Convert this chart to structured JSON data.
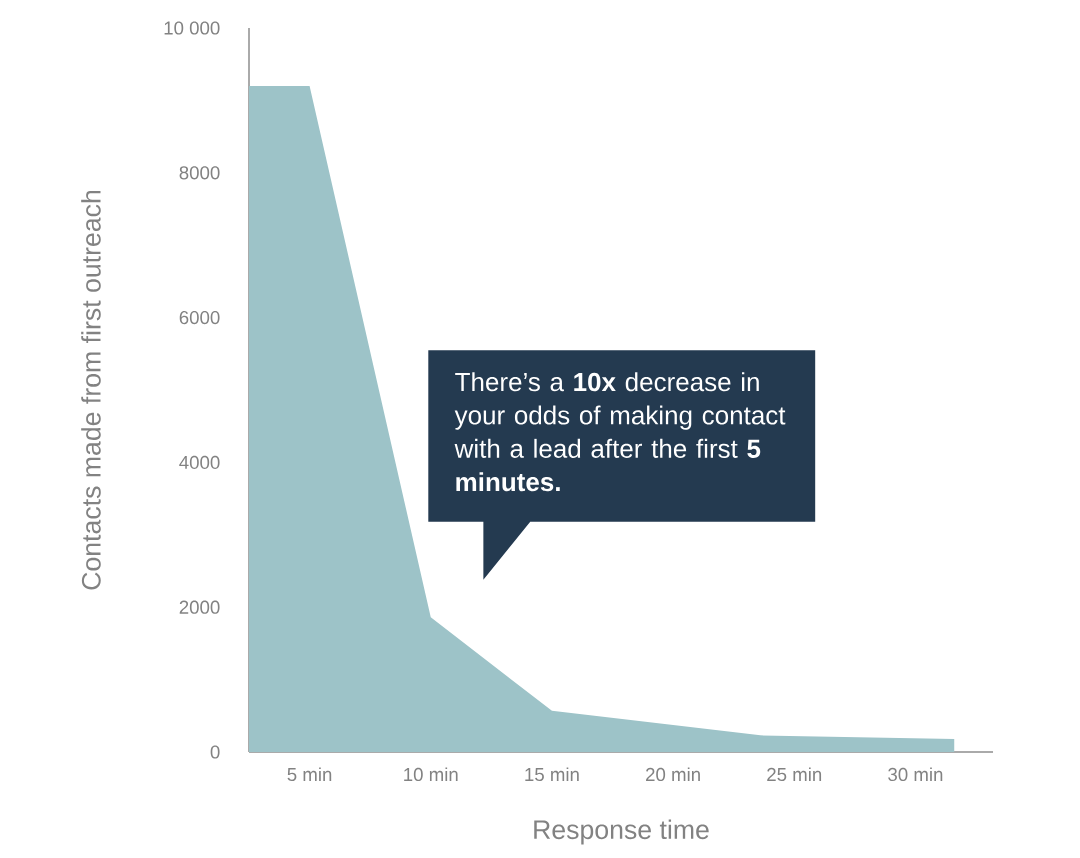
{
  "chart_data": {
    "type": "area",
    "xlabel": "Response time",
    "ylabel": "Contacts made from first outreach",
    "x": [
      2.5,
      5,
      10,
      15,
      23.6,
      31.6
    ],
    "series": [
      {
        "color": "#9dc3c8",
        "values": [
          9200,
          9200,
          1860,
          570,
          230,
          180
        ]
      }
    ],
    "xlim": [
      2.5,
      33.2
    ],
    "xticks": [
      {
        "value": 5,
        "label": "5 min"
      },
      {
        "value": 10,
        "label": "10 min"
      },
      {
        "value": 15,
        "label": "15 min"
      },
      {
        "value": 20,
        "label": "20 min"
      },
      {
        "value": 25,
        "label": "25 min"
      },
      {
        "value": 30,
        "label": "30 min"
      }
    ],
    "ylim": [
      0,
      10000
    ],
    "yticks": [
      0,
      2000,
      4000,
      6000,
      8000,
      {
        "value": 10000,
        "label": "10 000"
      }
    ],
    "annotations": [
      "There’s a **10x** decrease in your odds of making contact with a lead after the first **5 minutes.**"
    ]
  }
}
